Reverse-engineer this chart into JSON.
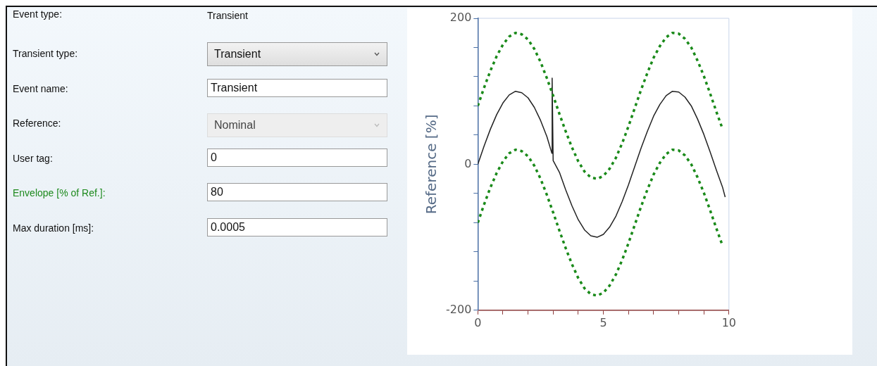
{
  "chart_data": [
    {
      "type": "other",
      "annotations": [
        "Event type:",
        "Transient",
        "Transient type:",
        "Transient",
        "Event name:",
        "Transient",
        "Reference:",
        "Nominal",
        "User tag:",
        "0",
        "Envelope [% of Ref.]:",
        "80",
        "Max duration [ms]:",
        "0.0005"
      ]
    },
    {
      "type": "line",
      "ylabel": "Reference [%]",
      "xlim": [
        0,
        10
      ],
      "ylim": [
        -200,
        200
      ],
      "xticks": [
        0,
        {
          "value": 1,
          "label": null
        },
        {
          "value": 2,
          "label": null
        },
        {
          "value": 3,
          "label": null
        },
        {
          "value": 4,
          "label": null
        },
        5,
        {
          "value": 6,
          "label": null
        },
        {
          "value": 7,
          "label": null
        },
        {
          "value": 8,
          "label": null
        },
        {
          "value": 9,
          "label": null
        },
        10
      ],
      "yticks": [
        -200,
        {
          "value": -160,
          "label": null
        },
        {
          "value": -120,
          "label": null
        },
        {
          "value": -80,
          "label": null
        },
        {
          "value": -40,
          "label": null
        },
        0,
        {
          "value": 40,
          "label": null
        },
        {
          "value": 80,
          "label": null
        },
        {
          "value": 120,
          "label": null
        },
        {
          "value": 160,
          "label": null
        },
        200
      ],
      "grid": false,
      "legend": false,
      "marker": "none",
      "series": [
        {
          "color": "#1a8a1a",
          "line_style": "dotted",
          "x": [
            0,
            0.25,
            0.5,
            0.75,
            1,
            1.25,
            1.5,
            1.75,
            2,
            2.25,
            2.5,
            2.75,
            3,
            3.25,
            3.5,
            3.75,
            4,
            4.25,
            4.5,
            4.75,
            5,
            5.25,
            5.5,
            5.75,
            6,
            6.25,
            6.5,
            6.75,
            7,
            7.25,
            7.5,
            7.75,
            8,
            8.25,
            8.5,
            8.75,
            9,
            9.25,
            9.5,
            9.75
          ],
          "values": [
            80,
            105,
            128,
            148,
            164,
            175,
            180,
            178,
            171,
            158,
            140,
            118,
            94,
            69,
            45,
            23,
            4,
            -10,
            -18,
            -20,
            -16,
            -6,
            9,
            29,
            52,
            77,
            102,
            125,
            146,
            162,
            174,
            180,
            179,
            172,
            160,
            142,
            121,
            97,
            72,
            48
          ]
        },
        {
          "color": "#1a8a1a",
          "line_style": "dotted",
          "x": [
            0,
            0.25,
            0.5,
            0.75,
            1,
            1.25,
            1.5,
            1.75,
            2,
            2.25,
            2.5,
            2.75,
            3,
            3.25,
            3.5,
            3.75,
            4,
            4.25,
            4.5,
            4.75,
            5,
            5.25,
            5.5,
            5.75,
            6,
            6.25,
            6.5,
            6.75,
            7,
            7.25,
            7.5,
            7.75,
            8,
            8.25,
            8.5,
            8.75,
            9,
            9.25,
            9.5,
            9.75
          ],
          "values": [
            -80,
            -55,
            -32,
            -12,
            4,
            15,
            20,
            18,
            11,
            -2,
            -20,
            -42,
            -66,
            -91,
            -115,
            -137,
            -156,
            -170,
            -178,
            -180,
            -176,
            -166,
            -151,
            -131,
            -108,
            -83,
            -58,
            -35,
            -14,
            2,
            14,
            20,
            19,
            12,
            0,
            -18,
            -39,
            -63,
            -88,
            -112
          ]
        },
        {
          "color": "#222222",
          "line_style": "solid",
          "x": [
            0,
            0.25,
            0.5,
            0.75,
            1,
            1.25,
            1.5,
            1.75,
            2,
            2.25,
            2.5,
            2.75,
            2.95,
            2.96,
            3,
            3.25,
            3.5,
            3.75,
            4,
            4.25,
            4.5,
            4.75,
            5,
            5.25,
            5.5,
            5.75,
            6,
            6.25,
            6.5,
            6.75,
            7,
            7.25,
            7.5,
            7.75,
            8,
            8.25,
            8.5,
            8.75,
            9,
            9.25,
            9.5,
            9.75,
            9.85
          ],
          "values": [
            0,
            25,
            48,
            68,
            84,
            95,
            100,
            98,
            91,
            78,
            60,
            38,
            15,
            118,
            5,
            -11,
            -35,
            -57,
            -76,
            -90,
            -98,
            -100,
            -96,
            -86,
            -71,
            -51,
            -28,
            -3,
            22,
            45,
            66,
            82,
            94,
            100,
            99,
            92,
            80,
            62,
            41,
            17,
            -8,
            -32,
            -45
          ]
        }
      ]
    }
  ]
}
